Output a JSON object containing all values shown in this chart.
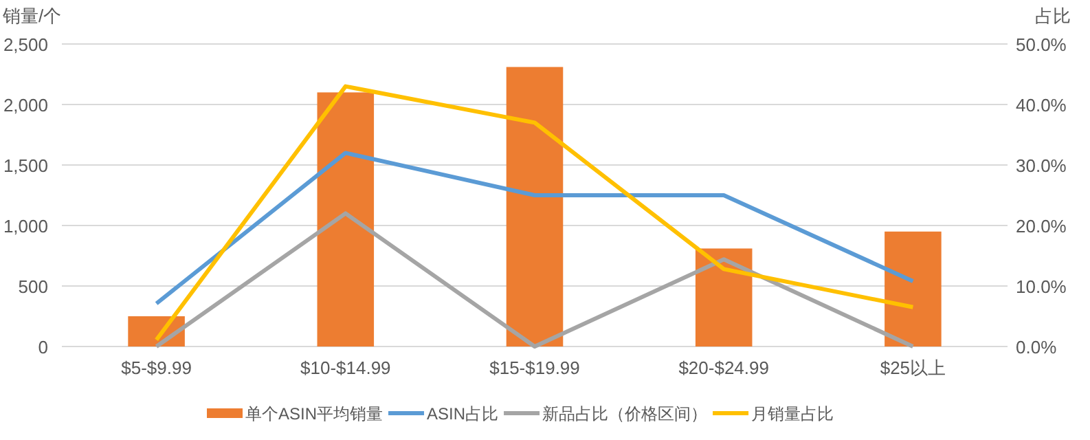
{
  "chart_data": {
    "type": "bar",
    "ylabel": "销量/个",
    "y2label": "占比",
    "categories": [
      "$5-$9.99",
      "$10-$14.99",
      "$15-$19.99",
      "$20-$24.99",
      "$25以上"
    ],
    "series": [
      {
        "name": "单个ASIN平均销量",
        "color": "#ed7d31",
        "values": [
          250,
          2100,
          2310,
          810,
          950
        ]
      },
      {
        "name": "ASIN占比",
        "type": "line",
        "axis": "y2",
        "color": "#5b9bd5",
        "values": [
          7.1,
          32,
          25,
          25,
          10.8
        ]
      },
      {
        "name": "新品占比（价格区间）",
        "type": "line",
        "axis": "y2",
        "color": "#a5a5a5",
        "values": [
          0,
          22,
          0,
          14.4,
          0
        ]
      },
      {
        "name": "月销量占比",
        "type": "line",
        "axis": "y2",
        "color": "#ffc000",
        "values": [
          1.1,
          43,
          37,
          12.8,
          6.5
        ]
      }
    ],
    "ylim": [
      0,
      2500
    ],
    "yticks": [
      0,
      500,
      {
        "value": 1000,
        "label": "1,000"
      },
      {
        "value": 1500,
        "label": "1,500"
      },
      {
        "value": 2000,
        "label": "2,000"
      },
      {
        "value": 2500,
        "label": "2,500"
      }
    ],
    "y2lim": [
      0,
      50
    ],
    "y2ticks": [
      {
        "value": 0,
        "label": "0.0%"
      },
      {
        "value": 10,
        "label": "10.0%"
      },
      {
        "value": 20,
        "label": "20.0%"
      },
      {
        "value": 30,
        "label": "30.0%"
      },
      {
        "value": 40,
        "label": "40.0%"
      },
      {
        "value": 50,
        "label": "50.0%"
      }
    ],
    "grid": "y",
    "legend": "bottom"
  }
}
